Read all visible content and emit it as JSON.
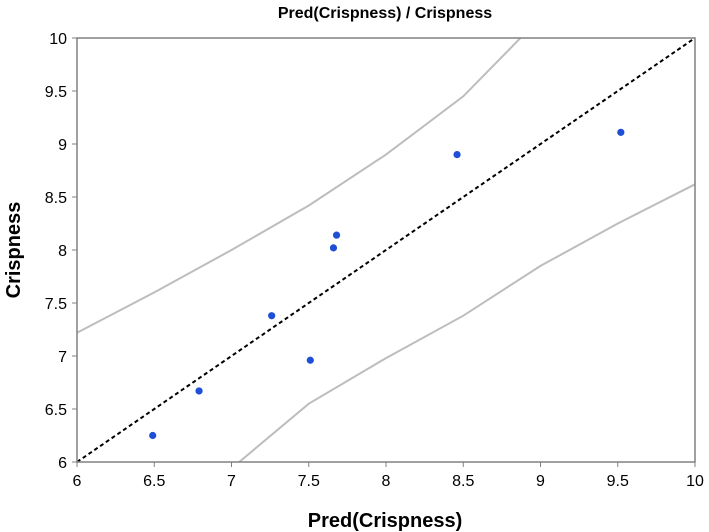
{
  "chart_data": {
    "type": "scatter",
    "title": "Pred(Crispness) / Crispness",
    "xlabel": "Pred(Crispness)",
    "ylabel": "Crispness",
    "xlim": [
      6,
      10
    ],
    "ylim": [
      6,
      10
    ],
    "xticks": [
      "6",
      "6.5",
      "7",
      "7.5",
      "8",
      "8.5",
      "9",
      "9.5",
      "10"
    ],
    "yticks": [
      "6",
      "6.5",
      "7",
      "7.5",
      "8",
      "8.5",
      "9",
      "9.5",
      "10"
    ],
    "grid": false,
    "points": [
      {
        "x": 6.49,
        "y": 6.25
      },
      {
        "x": 6.79,
        "y": 6.67
      },
      {
        "x": 7.26,
        "y": 7.38
      },
      {
        "x": 7.51,
        "y": 6.96
      },
      {
        "x": 7.66,
        "y": 8.02
      },
      {
        "x": 7.68,
        "y": 8.14
      },
      {
        "x": 8.46,
        "y": 8.9
      },
      {
        "x": 9.52,
        "y": 9.11
      }
    ],
    "reference_line": {
      "x": [
        6,
        10
      ],
      "y": [
        6,
        10
      ],
      "style": "dashed",
      "color": "#000000"
    },
    "confidence_bands": [
      {
        "x": [
          6,
          6.5,
          7,
          7.5,
          8,
          8.5,
          8.87
        ],
        "y": [
          7.22,
          7.6,
          8.0,
          8.42,
          8.9,
          9.45,
          10.0
        ]
      },
      {
        "x": [
          7.05,
          7.5,
          8,
          8.5,
          9,
          9.5,
          10
        ],
        "y": [
          6.0,
          6.55,
          6.98,
          7.38,
          7.85,
          8.25,
          8.62
        ]
      }
    ],
    "colors": {
      "points": "#1f4fd6",
      "bands": "#bdbdbd",
      "frame": "#808080"
    }
  }
}
